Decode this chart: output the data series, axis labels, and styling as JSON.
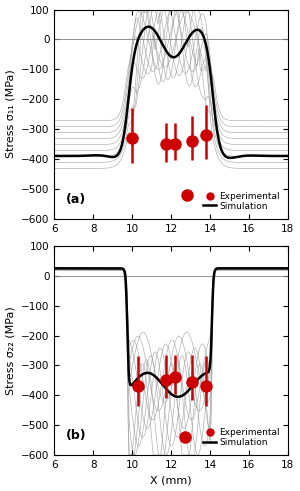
{
  "xlim": [
    6,
    18
  ],
  "ylim": [
    -600,
    100
  ],
  "xticks": [
    6,
    8,
    10,
    12,
    14,
    16,
    18
  ],
  "yticks": [
    -600,
    -500,
    -400,
    -300,
    -200,
    -100,
    0,
    100
  ],
  "xlabel": "X (mm)",
  "ylabel_a": "Stress σ₁₁ (MPa)",
  "ylabel_b": "Stress σ₂₂ (MPa)",
  "label_a": "(a)",
  "label_b": "(b)",
  "legend_exp": "Experimental",
  "legend_sim": "Simulation",
  "sim_color": "black",
  "gray_color": "#999999",
  "exp_color": "#cc0000",
  "bg_color": "white",
  "exp_points_a": {
    "x": [
      10.0,
      11.75,
      12.2,
      13.1,
      13.8
    ],
    "y": [
      -330,
      -350,
      -350,
      -340,
      -320
    ],
    "yerr_up": [
      100,
      70,
      70,
      85,
      100
    ],
    "yerr_down": [
      85,
      60,
      55,
      65,
      80
    ]
  },
  "exp_extra_a": {
    "x": [
      12.8
    ],
    "y": [
      -520
    ]
  },
  "exp_points_b": {
    "x": [
      10.3,
      11.75,
      12.2,
      13.1,
      13.8
    ],
    "y": [
      -370,
      -350,
      -340,
      -355,
      -370
    ],
    "yerr_up": [
      100,
      85,
      75,
      90,
      100
    ],
    "yerr_down": [
      65,
      60,
      55,
      60,
      65
    ]
  },
  "exp_extra_b": {
    "x": [
      12.7
    ],
    "y": [
      -540
    ]
  }
}
